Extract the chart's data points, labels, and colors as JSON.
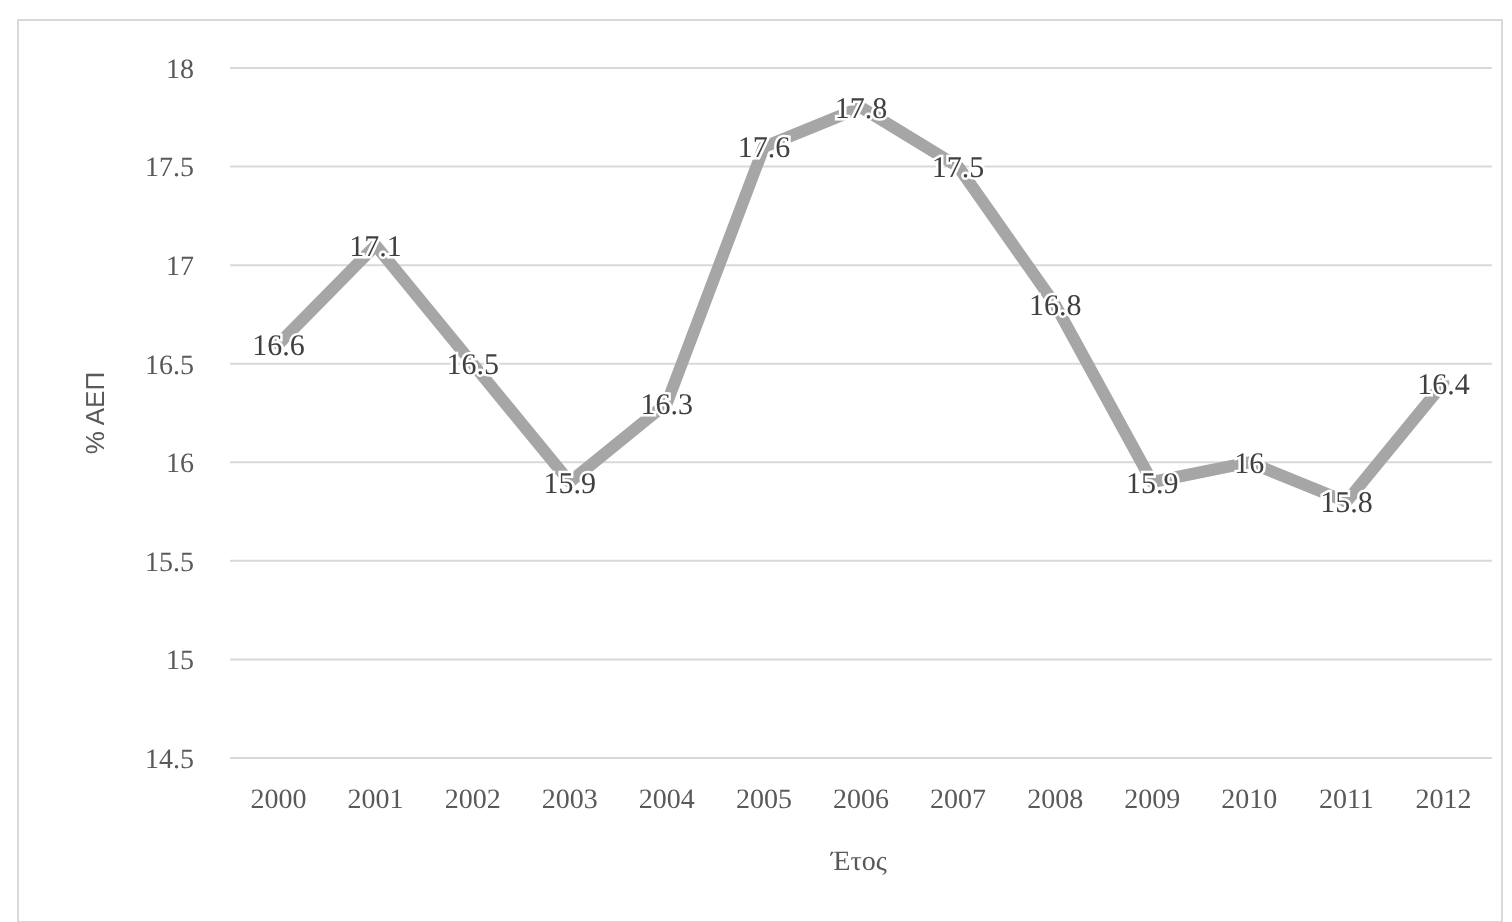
{
  "chart_data": {
    "type": "line",
    "xlabel": "Έτος",
    "ylabel": "% ΑΕΠ",
    "categories": [
      "2000",
      "2001",
      "2002",
      "2003",
      "2004",
      "2005",
      "2006",
      "2007",
      "2008",
      "2009",
      "2010",
      "2011",
      "2012"
    ],
    "series": [
      {
        "color": "#a6a6a6",
        "values": [
          16.6,
          17.1,
          16.5,
          15.9,
          16.3,
          17.6,
          17.8,
          17.5,
          16.8,
          15.9,
          16,
          15.8,
          16.4
        ]
      }
    ],
    "ylim": [
      14.5,
      18
    ],
    "yticks": [
      14.5,
      15,
      15.5,
      16,
      16.5,
      17,
      17.5,
      18
    ],
    "grid": "y",
    "data_labels": true,
    "marker": "none",
    "line_style": "solid"
  }
}
